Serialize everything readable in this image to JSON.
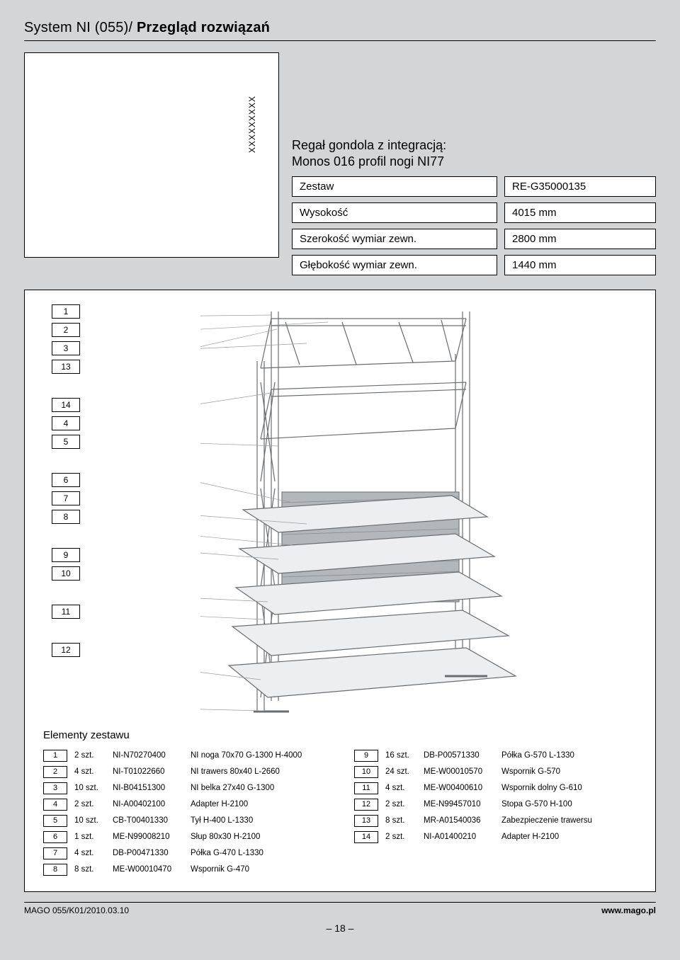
{
  "header": {
    "system": "System NI (055)/ ",
    "title": "Przegląd rozwiązań"
  },
  "topLeft": {
    "vertical": "XXXXXXXXX"
  },
  "product": {
    "line1": "Regał gondola z integracją:",
    "line2": "Monos 016 profil nogi NI77"
  },
  "specs": [
    {
      "label": "Zestaw",
      "value": "RE-G35000135"
    },
    {
      "label": "Wysokość",
      "value": "4015 mm"
    },
    {
      "label": "Szerokość wymiar zewn.",
      "value": "2800 mm"
    },
    {
      "label": "Głębokość wymiar zewn.",
      "value": "1440 mm"
    }
  ],
  "calloutGroups": [
    [
      "1",
      "2",
      "3",
      "13"
    ],
    [
      "14",
      "4",
      "5"
    ],
    [
      "6",
      "7",
      "8"
    ],
    [
      "9",
      "10"
    ],
    [
      "11"
    ],
    [
      "12"
    ]
  ],
  "partsTitle": "Elementy zestawu",
  "partsLeft": [
    {
      "n": "1",
      "qty": "2 szt.",
      "code": "NI-N70270400",
      "desc": "NI noga 70x70 G-1300 H-4000"
    },
    {
      "n": "2",
      "qty": "4 szt.",
      "code": "NI-T01022660",
      "desc": "NI trawers 80x40 L-2660"
    },
    {
      "n": "3",
      "qty": "10 szt.",
      "code": "NI-B04151300",
      "desc": "NI belka 27x40 G-1300"
    },
    {
      "n": "4",
      "qty": "2 szt.",
      "code": "NI-A00402100",
      "desc": "Adapter H-2100"
    },
    {
      "n": "5",
      "qty": "10 szt.",
      "code": "CB-T00401330",
      "desc": "Tył H-400 L-1330"
    },
    {
      "n": "6",
      "qty": "1 szt.",
      "code": "ME-N99008210",
      "desc": "Słup 80x30 H-2100"
    },
    {
      "n": "7",
      "qty": "4 szt.",
      "code": "DB-P00471330",
      "desc": "Półka G-470 L-1330"
    },
    {
      "n": "8",
      "qty": "8 szt.",
      "code": "ME-W00010470",
      "desc": "Wspornik G-470"
    }
  ],
  "partsRight": [
    {
      "n": "9",
      "qty": "16 szt.",
      "code": "DB-P00571330",
      "desc": "Półka G-570 L-1330"
    },
    {
      "n": "10",
      "qty": "24 szt.",
      "code": "ME-W00010570",
      "desc": "Wspornik G-570"
    },
    {
      "n": "11",
      "qty": "4 szt.",
      "code": "ME-W00400610",
      "desc": "Wspornik dolny G-610"
    },
    {
      "n": "12",
      "qty": "2 szt.",
      "code": "ME-N99457010",
      "desc": "Stopa G-570 H-100"
    },
    {
      "n": "13",
      "qty": "8 szt.",
      "code": "MR-A01540036",
      "desc": "Zabezpieczenie trawersu"
    },
    {
      "n": "14",
      "qty": "2 szt.",
      "code": "NI-A01400210",
      "desc": "Adapter H-2100"
    }
  ],
  "footer": {
    "left": "MAGO 055/K01/2010.03.10",
    "right": "www.mago.pl"
  },
  "pageNumber": "– 18 –",
  "colors": {
    "bg": "#d4d5d6",
    "line": "#7a7c7e",
    "lineDark": "#4a4c4e",
    "panel": "#b8bbbd"
  }
}
